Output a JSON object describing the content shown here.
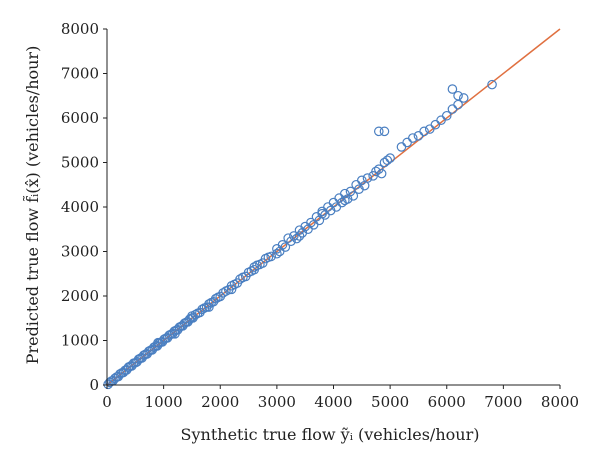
{
  "chart_data": {
    "type": "scatter",
    "title": "",
    "xlabel": "Synthetic true flow ỹᵢ (vehicles/hour)",
    "ylabel": "Predicted true flow f̃ᵢ(x̂) (vehicles/hour)",
    "xlim": [
      0,
      8000
    ],
    "ylim": [
      0,
      8000
    ],
    "xticks": [
      0,
      1000,
      2000,
      3000,
      4000,
      5000,
      6000,
      7000,
      8000
    ],
    "yticks": [
      0,
      1000,
      2000,
      3000,
      4000,
      5000,
      6000,
      7000,
      8000
    ],
    "grid": false,
    "marker_color": "#4a7fc1",
    "line_color": "#e07040",
    "reference_line": {
      "x": [
        0,
        8000
      ],
      "y": [
        0,
        8000
      ]
    },
    "series": [
      {
        "points": [
          [
            20,
            15
          ],
          [
            50,
            60
          ],
          [
            80,
            90
          ],
          [
            110,
            100
          ],
          [
            140,
            150
          ],
          [
            170,
            180
          ],
          [
            200,
            190
          ],
          [
            230,
            250
          ],
          [
            260,
            270
          ],
          [
            290,
            280
          ],
          [
            320,
            330
          ],
          [
            350,
            340
          ],
          [
            380,
            400
          ],
          [
            410,
            420
          ],
          [
            440,
            430
          ],
          [
            470,
            490
          ],
          [
            500,
            500
          ],
          [
            530,
            520
          ],
          [
            560,
            580
          ],
          [
            590,
            600
          ],
          [
            620,
            610
          ],
          [
            650,
            670
          ],
          [
            680,
            690
          ],
          [
            710,
            700
          ],
          [
            740,
            760
          ],
          [
            770,
            780
          ],
          [
            800,
            790
          ],
          [
            830,
            850
          ],
          [
            860,
            870
          ],
          [
            890,
            880
          ],
          [
            920,
            940
          ],
          [
            950,
            960
          ],
          [
            980,
            970
          ],
          [
            1010,
            1030
          ],
          [
            1040,
            1050
          ],
          [
            1070,
            1060
          ],
          [
            1100,
            1120
          ],
          [
            1130,
            1140
          ],
          [
            1160,
            1150
          ],
          [
            1190,
            1210
          ],
          [
            1220,
            1230
          ],
          [
            1250,
            1240
          ],
          [
            1280,
            1300
          ],
          [
            1310,
            1320
          ],
          [
            1340,
            1330
          ],
          [
            1370,
            1390
          ],
          [
            1400,
            1410
          ],
          [
            1430,
            1420
          ],
          [
            1460,
            1480
          ],
          [
            1490,
            1500
          ],
          [
            1520,
            1510
          ],
          [
            1560,
            1580
          ],
          [
            1600,
            1610
          ],
          [
            1640,
            1630
          ],
          [
            1680,
            1700
          ],
          [
            1720,
            1730
          ],
          [
            1760,
            1750
          ],
          [
            1800,
            1820
          ],
          [
            1840,
            1850
          ],
          [
            1880,
            1870
          ],
          [
            1920,
            1940
          ],
          [
            1960,
            1970
          ],
          [
            2000,
            1990
          ],
          [
            2050,
            2070
          ],
          [
            2100,
            2110
          ],
          [
            2150,
            2140
          ],
          [
            2200,
            2230
          ],
          [
            2250,
            2260
          ],
          [
            2300,
            2290
          ],
          [
            2350,
            2380
          ],
          [
            2400,
            2420
          ],
          [
            2450,
            2440
          ],
          [
            2500,
            2530
          ],
          [
            2550,
            2560
          ],
          [
            2600,
            2590
          ],
          [
            2650,
            2690
          ],
          [
            2700,
            2710
          ],
          [
            2750,
            2740
          ],
          [
            2800,
            2840
          ],
          [
            2850,
            2870
          ],
          [
            2900,
            2890
          ],
          [
            3000,
            3060
          ],
          [
            3050,
            3000
          ],
          [
            3100,
            3150
          ],
          [
            3150,
            3100
          ],
          [
            3200,
            3300
          ],
          [
            3250,
            3230
          ],
          [
            3300,
            3350
          ],
          [
            3350,
            3290
          ],
          [
            3400,
            3480
          ],
          [
            3450,
            3420
          ],
          [
            3500,
            3560
          ],
          [
            3550,
            3500
          ],
          [
            3600,
            3650
          ],
          [
            3650,
            3600
          ],
          [
            3700,
            3780
          ],
          [
            3750,
            3700
          ],
          [
            3800,
            3900
          ],
          [
            3850,
            3820
          ],
          [
            3900,
            4000
          ],
          [
            3950,
            3920
          ],
          [
            4000,
            4100
          ],
          [
            4050,
            4000
          ],
          [
            4100,
            4200
          ],
          [
            4150,
            4100
          ],
          [
            4200,
            4300
          ],
          [
            4250,
            4180
          ],
          [
            4300,
            4350
          ],
          [
            4400,
            4500
          ],
          [
            4350,
            4250
          ],
          [
            4450,
            4400
          ],
          [
            4500,
            4600
          ],
          [
            4550,
            4480
          ],
          [
            4600,
            4650
          ],
          [
            4700,
            4700
          ],
          [
            4750,
            4800
          ],
          [
            4800,
            4850
          ],
          [
            4850,
            4750
          ],
          [
            4900,
            5000
          ],
          [
            5000,
            5100
          ],
          [
            4950,
            5050
          ],
          [
            4800,
            5700
          ],
          [
            4900,
            5700
          ],
          [
            5200,
            5350
          ],
          [
            5300,
            5450
          ],
          [
            5400,
            5550
          ],
          [
            5500,
            5600
          ],
          [
            5600,
            5700
          ],
          [
            5700,
            5750
          ],
          [
            5800,
            5850
          ],
          [
            5900,
            5950
          ],
          [
            6000,
            6050
          ],
          [
            6100,
            6200
          ],
          [
            6200,
            6300
          ],
          [
            6100,
            6650
          ],
          [
            6200,
            6500
          ],
          [
            6300,
            6450
          ],
          [
            6800,
            6750
          ],
          [
            900,
            950
          ],
          [
            1200,
            1150
          ],
          [
            1500,
            1550
          ],
          [
            1800,
            1750
          ],
          [
            2200,
            2150
          ],
          [
            2600,
            2650
          ],
          [
            3000,
            2950
          ],
          [
            3400,
            3350
          ],
          [
            3800,
            3850
          ],
          [
            4200,
            4150
          ]
        ]
      }
    ]
  }
}
